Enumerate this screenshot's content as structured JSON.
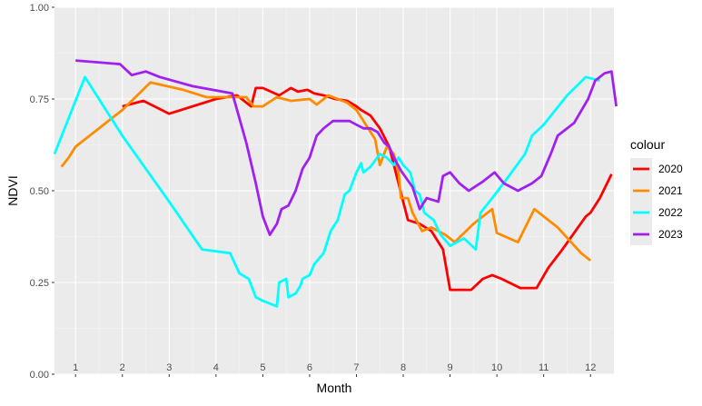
{
  "chart_data": {
    "type": "line",
    "title": "",
    "xlabel": "Month",
    "ylabel": "NDVI",
    "xlim": [
      0.55,
      12.5
    ],
    "ylim": [
      0,
      1
    ],
    "x_ticks": [
      1,
      2,
      3,
      4,
      5,
      6,
      7,
      8,
      9,
      10,
      11,
      12
    ],
    "x_tick_labels": [
      "1",
      "2",
      "3",
      "4",
      "5",
      "6",
      "7",
      "8",
      "9",
      "10",
      "11",
      "12"
    ],
    "y_ticks": [
      0,
      0.25,
      0.5,
      0.75,
      1
    ],
    "y_tick_labels": [
      "0.00",
      "0.25",
      "0.50",
      "0.75",
      "1.00"
    ],
    "grid": true,
    "legend": {
      "title": "colour",
      "position": "right"
    },
    "series": [
      {
        "name": "2020",
        "color": "#FF0000",
        "points": [
          [
            2.0,
            0.73
          ],
          [
            2.45,
            0.745
          ],
          [
            3.0,
            0.71
          ],
          [
            4.0,
            0.75
          ],
          [
            4.45,
            0.76
          ],
          [
            4.75,
            0.73
          ],
          [
            4.85,
            0.78
          ],
          [
            5.0,
            0.78
          ],
          [
            5.35,
            0.76
          ],
          [
            5.6,
            0.78
          ],
          [
            5.75,
            0.77
          ],
          [
            5.95,
            0.775
          ],
          [
            6.1,
            0.765
          ],
          [
            6.3,
            0.76
          ],
          [
            6.55,
            0.75
          ],
          [
            6.8,
            0.745
          ],
          [
            7.0,
            0.73
          ],
          [
            7.1,
            0.72
          ],
          [
            7.3,
            0.705
          ],
          [
            7.5,
            0.67
          ],
          [
            7.7,
            0.62
          ],
          [
            7.8,
            0.57
          ],
          [
            7.9,
            0.52
          ],
          [
            8.0,
            0.47
          ],
          [
            8.1,
            0.42
          ],
          [
            8.35,
            0.41
          ],
          [
            8.6,
            0.39
          ],
          [
            8.85,
            0.34
          ],
          [
            9.0,
            0.23
          ],
          [
            9.45,
            0.23
          ],
          [
            9.7,
            0.26
          ],
          [
            9.9,
            0.27
          ],
          [
            10.1,
            0.26
          ],
          [
            10.5,
            0.235
          ],
          [
            10.85,
            0.235
          ],
          [
            11.1,
            0.29
          ],
          [
            11.4,
            0.34
          ],
          [
            11.9,
            0.43
          ],
          [
            12.0,
            0.44
          ],
          [
            12.2,
            0.48
          ],
          [
            12.45,
            0.545
          ]
        ]
      },
      {
        "name": "2021",
        "color": "#FF8C00",
        "points": [
          [
            0.7,
            0.565
          ],
          [
            0.85,
            0.59
          ],
          [
            1.0,
            0.62
          ],
          [
            1.5,
            0.67
          ],
          [
            2.0,
            0.72
          ],
          [
            2.6,
            0.795
          ],
          [
            3.3,
            0.775
          ],
          [
            3.8,
            0.755
          ],
          [
            4.4,
            0.755
          ],
          [
            4.65,
            0.755
          ],
          [
            4.8,
            0.73
          ],
          [
            5.0,
            0.73
          ],
          [
            5.3,
            0.755
          ],
          [
            5.6,
            0.745
          ],
          [
            6.0,
            0.75
          ],
          [
            6.15,
            0.735
          ],
          [
            6.4,
            0.76
          ],
          [
            6.8,
            0.74
          ],
          [
            7.0,
            0.72
          ],
          [
            7.2,
            0.68
          ],
          [
            7.4,
            0.64
          ],
          [
            7.5,
            0.57
          ],
          [
            7.65,
            0.62
          ],
          [
            7.8,
            0.6
          ],
          [
            7.9,
            0.55
          ],
          [
            7.95,
            0.48
          ],
          [
            8.1,
            0.48
          ],
          [
            8.2,
            0.44
          ],
          [
            8.4,
            0.39
          ],
          [
            8.6,
            0.4
          ],
          [
            8.9,
            0.38
          ],
          [
            9.1,
            0.36
          ],
          [
            9.5,
            0.41
          ],
          [
            9.9,
            0.45
          ],
          [
            10.0,
            0.385
          ],
          [
            10.45,
            0.36
          ],
          [
            10.8,
            0.45
          ],
          [
            11.3,
            0.4
          ],
          [
            11.8,
            0.33
          ],
          [
            12.0,
            0.31
          ]
        ]
      },
      {
        "name": "2022",
        "color": "#00FFFF",
        "points": [
          [
            0.55,
            0.6
          ],
          [
            1.2,
            0.81
          ],
          [
            2.0,
            0.65
          ],
          [
            3.0,
            0.47
          ],
          [
            3.7,
            0.34
          ],
          [
            4.3,
            0.33
          ],
          [
            4.5,
            0.275
          ],
          [
            4.7,
            0.26
          ],
          [
            4.85,
            0.21
          ],
          [
            5.0,
            0.2
          ],
          [
            5.3,
            0.185
          ],
          [
            5.35,
            0.25
          ],
          [
            5.5,
            0.26
          ],
          [
            5.55,
            0.21
          ],
          [
            5.7,
            0.22
          ],
          [
            5.8,
            0.24
          ],
          [
            5.85,
            0.26
          ],
          [
            6.0,
            0.27
          ],
          [
            6.1,
            0.3
          ],
          [
            6.3,
            0.33
          ],
          [
            6.45,
            0.39
          ],
          [
            6.6,
            0.42
          ],
          [
            6.75,
            0.49
          ],
          [
            6.85,
            0.5
          ],
          [
            7.0,
            0.55
          ],
          [
            7.1,
            0.575
          ],
          [
            7.15,
            0.55
          ],
          [
            7.3,
            0.565
          ],
          [
            7.5,
            0.6
          ],
          [
            7.65,
            0.59
          ],
          [
            7.8,
            0.57
          ],
          [
            7.9,
            0.59
          ],
          [
            8.0,
            0.57
          ],
          [
            8.15,
            0.55
          ],
          [
            8.25,
            0.5
          ],
          [
            8.35,
            0.49
          ],
          [
            8.45,
            0.44
          ],
          [
            8.65,
            0.42
          ],
          [
            8.8,
            0.38
          ],
          [
            9.0,
            0.35
          ],
          [
            9.3,
            0.37
          ],
          [
            9.55,
            0.34
          ],
          [
            9.65,
            0.44
          ],
          [
            9.9,
            0.48
          ],
          [
            10.2,
            0.53
          ],
          [
            10.6,
            0.6
          ],
          [
            10.75,
            0.65
          ],
          [
            11.0,
            0.68
          ],
          [
            11.5,
            0.76
          ],
          [
            11.9,
            0.81
          ],
          [
            12.2,
            0.8
          ]
        ]
      },
      {
        "name": "2023",
        "color": "#A020F0",
        "points": [
          [
            1.0,
            0.855
          ],
          [
            1.95,
            0.845
          ],
          [
            2.2,
            0.815
          ],
          [
            2.5,
            0.825
          ],
          [
            2.8,
            0.81
          ],
          [
            3.5,
            0.785
          ],
          [
            4.35,
            0.765
          ],
          [
            4.65,
            0.63
          ],
          [
            4.85,
            0.52
          ],
          [
            5.0,
            0.43
          ],
          [
            5.15,
            0.38
          ],
          [
            5.3,
            0.41
          ],
          [
            5.4,
            0.45
          ],
          [
            5.55,
            0.46
          ],
          [
            5.7,
            0.5
          ],
          [
            5.85,
            0.56
          ],
          [
            6.0,
            0.59
          ],
          [
            6.15,
            0.65
          ],
          [
            6.3,
            0.67
          ],
          [
            6.5,
            0.69
          ],
          [
            6.7,
            0.69
          ],
          [
            6.85,
            0.69
          ],
          [
            7.0,
            0.68
          ],
          [
            7.15,
            0.67
          ],
          [
            7.3,
            0.67
          ],
          [
            7.45,
            0.66
          ],
          [
            7.6,
            0.63
          ],
          [
            7.7,
            0.62
          ],
          [
            7.8,
            0.59
          ],
          [
            7.95,
            0.555
          ],
          [
            8.2,
            0.51
          ],
          [
            8.35,
            0.45
          ],
          [
            8.5,
            0.48
          ],
          [
            8.75,
            0.47
          ],
          [
            8.85,
            0.54
          ],
          [
            9.0,
            0.55
          ],
          [
            9.2,
            0.52
          ],
          [
            9.4,
            0.5
          ],
          [
            9.7,
            0.525
          ],
          [
            9.95,
            0.55
          ],
          [
            10.15,
            0.52
          ],
          [
            10.45,
            0.5
          ],
          [
            10.75,
            0.52
          ],
          [
            10.95,
            0.54
          ],
          [
            11.15,
            0.6
          ],
          [
            11.3,
            0.65
          ],
          [
            11.65,
            0.685
          ],
          [
            11.95,
            0.75
          ],
          [
            12.1,
            0.8
          ],
          [
            12.3,
            0.82
          ],
          [
            12.45,
            0.825
          ],
          [
            12.55,
            0.73
          ]
        ]
      }
    ]
  }
}
